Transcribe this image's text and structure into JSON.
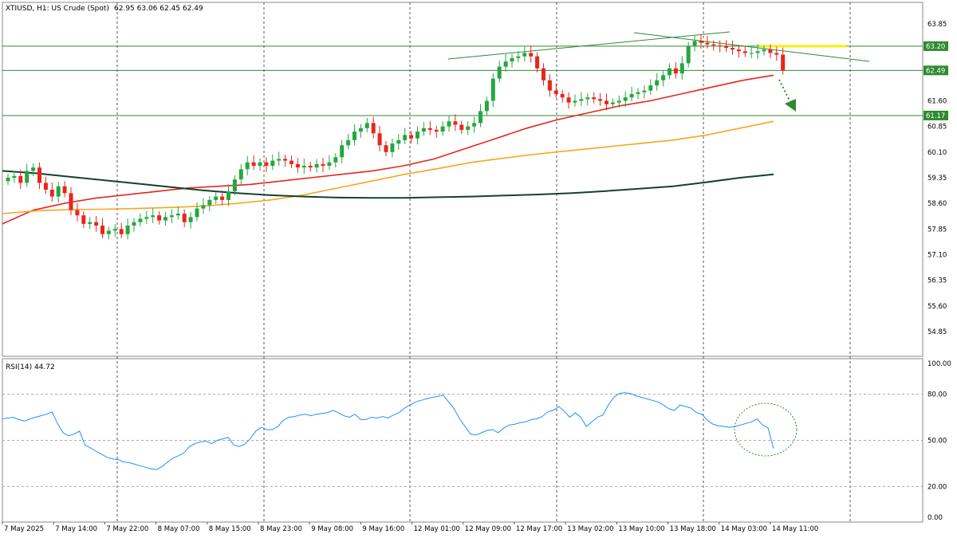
{
  "header": {
    "symbol": "XTIUSD, H1:  US Crude (Spot)",
    "ohlc": "62.95 63.06 62.45 62.49"
  },
  "rsi_header": {
    "label": "RSI(14) 44.72"
  },
  "price_axis_labels": [
    "63.85",
    "63.20",
    "62.49",
    "61.60",
    "61.17",
    "60.85",
    "60.10",
    "59.35",
    "58.60",
    "57.85",
    "57.10",
    "56.35",
    "55.60",
    "54.85"
  ],
  "rsi_axis_labels": [
    "100.00",
    "80.00",
    "50.00",
    "20.00",
    "0.00"
  ],
  "price_tags": {
    "resistance": {
      "label": "63.20",
      "value": 63.2
    },
    "current": {
      "label": "62.49",
      "value": 62.49
    },
    "support": {
      "label": "61.17",
      "value": 61.17
    }
  },
  "time_labels": [
    "7 May 2025",
    "7 May 14:00",
    "7 May 22:00",
    "8 May 07:00",
    "8 May 15:00",
    "8 May 23:00",
    "9 May 08:00",
    "9 May 16:00",
    "12 May 01:00",
    "12 May 09:00",
    "12 May 17:00",
    "13 May 02:00",
    "13 May 10:00",
    "13 May 18:00",
    "14 May 03:00",
    "14 May 11:00"
  ],
  "colors": {
    "bull": "#26a641",
    "bear": "#e8261c",
    "ema_red": "#e8261c",
    "ema_orange": "#f5a623",
    "ema_dark": "#16402d",
    "rsi": "#1e90ff",
    "level_line": "#2e8b2e",
    "tag_bg": "#2e8b2e",
    "highlight": "#f2f20a"
  },
  "chart_data": [
    {
      "type": "candlestick",
      "title": "XTIUSD, H1: US Crude (Spot)",
      "ylim": [
        54.5,
        64.2
      ],
      "x_interval": "1 hour",
      "x_start": "7 May 2025 05:00",
      "ohlc_close": [
        59.35,
        59.4,
        59.2,
        59.55,
        59.65,
        59.2,
        59.0,
        58.8,
        59.1,
        58.9,
        58.4,
        58.25,
        58.0,
        58.05,
        57.95,
        57.7,
        57.8,
        57.85,
        57.7,
        57.95,
        58.05,
        58.15,
        58.2,
        58.25,
        58.1,
        58.2,
        58.25,
        58.3,
        58.05,
        58.2,
        58.45,
        58.55,
        58.7,
        58.8,
        58.7,
        58.95,
        59.3,
        59.6,
        59.8,
        59.7,
        59.8,
        59.7,
        59.85,
        59.9,
        59.85,
        59.75,
        59.65,
        59.7,
        59.65,
        59.75,
        59.7,
        59.8,
        59.95,
        60.3,
        60.45,
        60.7,
        60.8,
        60.95,
        60.65,
        60.3,
        60.1,
        60.35,
        60.45,
        60.6,
        60.5,
        60.7,
        60.8,
        60.75,
        60.7,
        60.85,
        61.0,
        60.9,
        60.75,
        60.85,
        60.95,
        61.3,
        61.6,
        62.25,
        62.6,
        62.75,
        62.85,
        62.9,
        63.0,
        62.9,
        62.55,
        62.2,
        61.9,
        61.8,
        61.7,
        61.55,
        61.6,
        61.65,
        61.7,
        61.65,
        61.6,
        61.5,
        61.55,
        61.6,
        61.7,
        61.8,
        61.85,
        61.9,
        62.05,
        62.2,
        62.35,
        62.55,
        62.4,
        62.7,
        63.2,
        63.35,
        63.3,
        63.25,
        63.22,
        63.2,
        63.15,
        63.1,
        63.05,
        63.0,
        63.0,
        63.05,
        63.1,
        63.0,
        62.95,
        62.49
      ],
      "series": [
        {
          "name": "RSI(14)",
          "last": 44.72
        }
      ],
      "levels": [
        63.2,
        62.49,
        61.17
      ]
    },
    {
      "type": "line",
      "title": "RSI(14) 44.72",
      "ylim": [
        0,
        100
      ],
      "levels": [
        80,
        50,
        20
      ],
      "values": [
        64,
        64.5,
        65,
        63.5,
        62.5,
        64,
        65,
        66,
        67,
        68.5,
        61,
        55,
        53,
        54,
        56,
        47,
        45,
        43,
        41,
        39,
        38,
        37.5,
        36,
        35.5,
        34.5,
        33.5,
        32.5,
        31.5,
        31,
        33,
        36,
        38.5,
        40,
        42,
        46,
        48,
        49,
        49.5,
        48,
        50,
        51,
        52,
        47,
        46,
        47.5,
        51,
        56,
        58.5,
        57,
        57,
        59,
        63,
        65,
        65.5,
        66.5,
        67,
        66,
        67,
        67.5,
        68,
        69.5,
        68,
        66,
        65,
        67,
        63.5,
        63.5,
        65,
        64.5,
        65.5,
        64.5,
        66.5,
        68,
        71,
        73,
        75,
        76,
        77,
        78,
        78.5,
        79.5,
        75,
        70.5,
        64,
        59,
        54,
        53.5,
        55,
        56.5,
        57,
        55,
        58,
        60,
        60.5,
        61.5,
        62,
        63.5,
        64,
        65.5,
        68.5,
        69.5,
        72,
        69,
        65,
        68,
        65,
        59,
        62,
        65,
        66.5,
        73,
        78,
        80.5,
        81,
        80.5,
        79,
        78,
        77,
        76,
        75,
        73,
        70.5,
        69.5,
        73,
        72,
        71,
        68,
        67,
        63,
        60.5,
        59.5,
        59,
        58.5,
        59,
        60,
        61,
        62,
        64,
        60,
        58,
        44.72
      ]
    }
  ]
}
